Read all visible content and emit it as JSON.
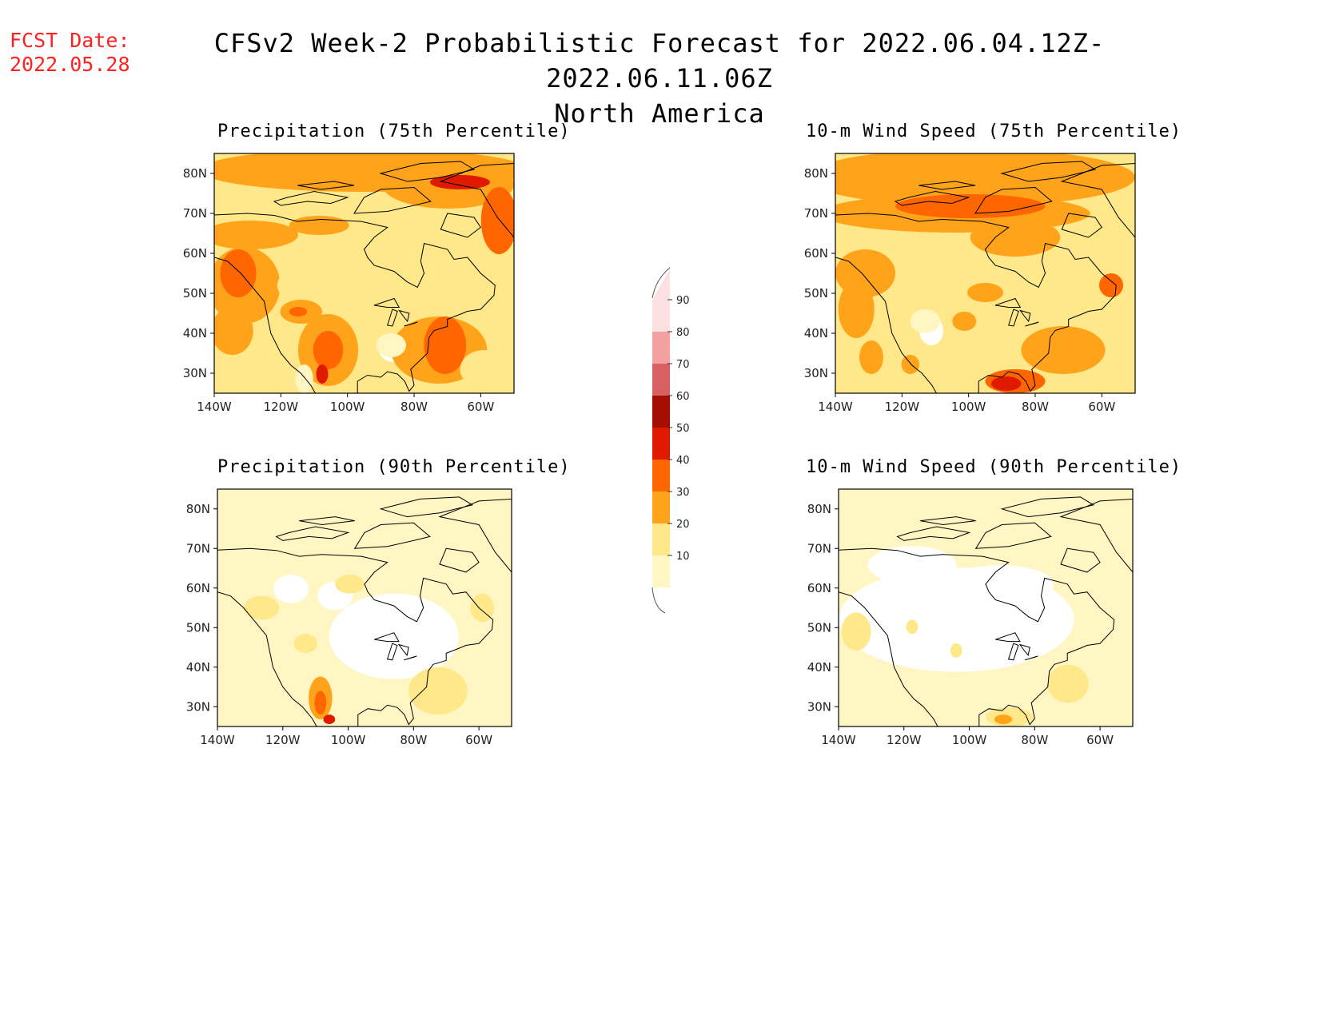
{
  "header": {
    "fcst_label": "FCST Date:",
    "fcst_date": "2022.05.28",
    "title_line1": "CFSv2 Week-2 Probabilistic Forecast for 2022.06.04.12Z-2022.06.11.06Z",
    "title_line2": "North America"
  },
  "axes": {
    "lon_ticks": [
      "140W",
      "120W",
      "100W",
      "80W",
      "60W"
    ],
    "lat_ticks": [
      "80N",
      "70N",
      "60N",
      "50N",
      "40N",
      "30N"
    ]
  },
  "panels": [
    {
      "id": "precip-75",
      "title": "Precipitation (75th Percentile)",
      "variable": "precipitation",
      "percentile": 75
    },
    {
      "id": "wind-75",
      "title": "10-m Wind Speed (75th Percentile)",
      "variable": "10-m wind speed",
      "percentile": 75
    },
    {
      "id": "precip-90",
      "title": "Precipitation (90th Percentile)",
      "variable": "precipitation",
      "percentile": 90
    },
    {
      "id": "wind-90",
      "title": "10-m Wind Speed (90th Percentile)",
      "variable": "10-m wind speed",
      "percentile": 90
    }
  ],
  "colorbar": {
    "labels": [
      "10",
      "20",
      "30",
      "40",
      "50",
      "60",
      "70",
      "80",
      "90"
    ],
    "colors": [
      "#fff6c4",
      "#ffe88a",
      "#ffa31a",
      "#ff6600",
      "#e01a00",
      "#a50e00",
      "#d96060",
      "#f2a0a0",
      "#fde0e0"
    ]
  }
}
